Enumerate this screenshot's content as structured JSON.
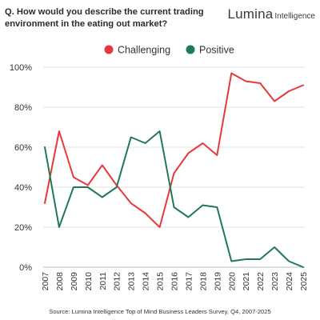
{
  "title": "Q. How would you describe the current trading environment in the eating out market?",
  "brand": {
    "main": "Lumina",
    "sub": "Intelligence"
  },
  "source": "Source: Lumina Intelligence Top of Mind Business Leaders Survey, Q4, 2007-2025",
  "chart_data": {
    "type": "line",
    "title": "Q. How would you describe the current trading environment in the eating out market?",
    "xlabel": "",
    "ylabel": "",
    "x": [
      "2007",
      "2008",
      "2009",
      "2010",
      "2011",
      "2012",
      "2013",
      "2014",
      "2015",
      "2016",
      "2017",
      "2018",
      "2019",
      "2020",
      "2021",
      "2022",
      "2023",
      "2024",
      "2025"
    ],
    "ylim": [
      0,
      100
    ],
    "y_ticks": [
      "0%",
      "20%",
      "40%",
      "60%",
      "80%",
      "100%"
    ],
    "y_tick_values": [
      0,
      20,
      40,
      60,
      80,
      100
    ],
    "grid": true,
    "legend_position": "top",
    "series": [
      {
        "name": "Challenging",
        "color": "#e8383d",
        "values": [
          32,
          68,
          45,
          41,
          51,
          41,
          32,
          27,
          20,
          47,
          57,
          62,
          56,
          97,
          93,
          92,
          83,
          88,
          91
        ]
      },
      {
        "name": "Positive",
        "color": "#1f7a53",
        "values": [
          60,
          20,
          40,
          40,
          35,
          40,
          65,
          62,
          68,
          30,
          25,
          31,
          30,
          3,
          4,
          4,
          10,
          3,
          0
        ]
      }
    ]
  }
}
